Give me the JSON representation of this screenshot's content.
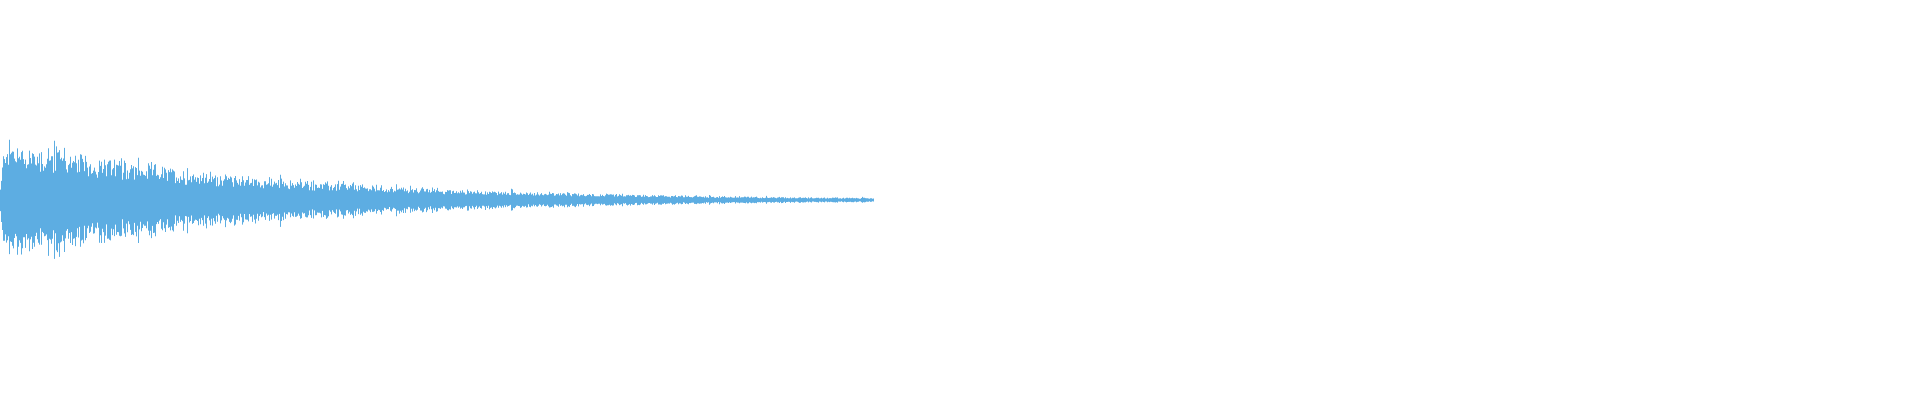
{
  "chart_data": {
    "type": "waveform",
    "title": "",
    "xlabel": "",
    "ylabel": "",
    "color": "#5DADE2",
    "background": "#ffffff",
    "grid": false,
    "legend": "none",
    "ylim": [
      -1,
      1
    ],
    "envelope": {
      "peak_amplitude": 0.3,
      "decay": "exponential",
      "signal_extent_fraction": 0.45
    }
  }
}
